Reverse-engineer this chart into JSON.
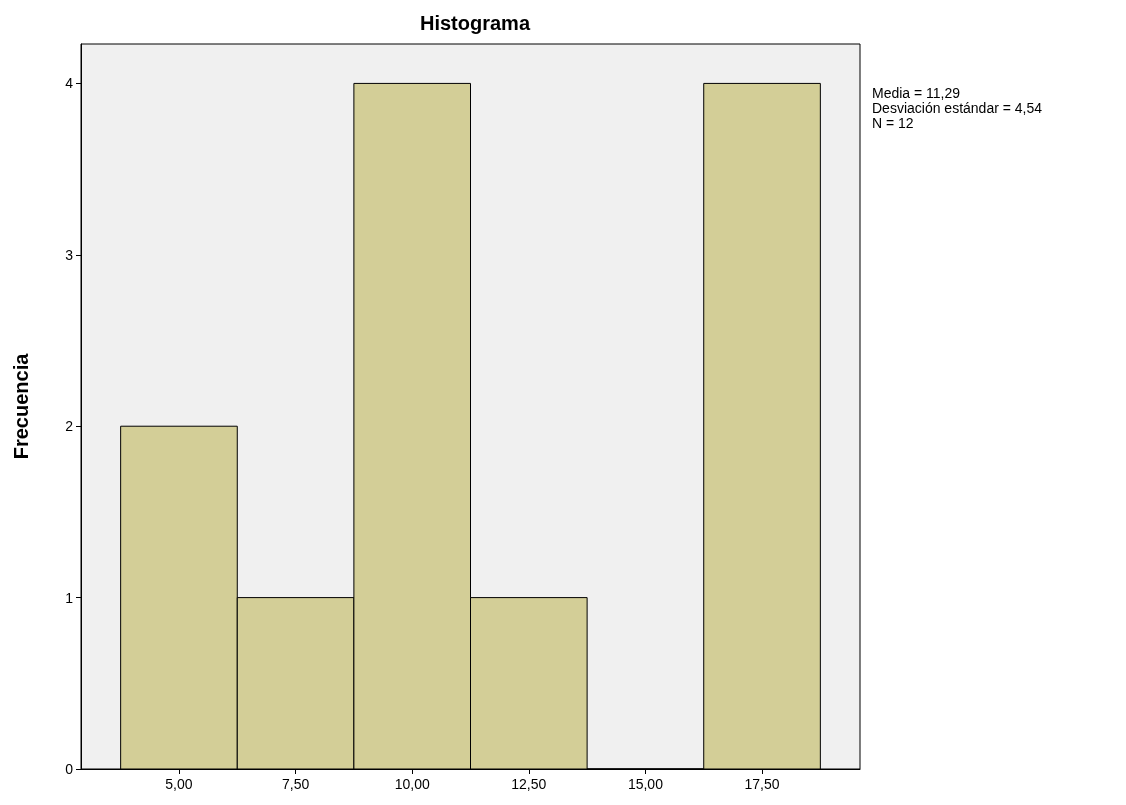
{
  "chart_data": {
    "type": "histogram",
    "title": "Histograma",
    "ylabel": "Frecuencia",
    "bins": [
      3.75,
      6.25,
      8.75,
      11.25,
      13.75,
      16.25,
      18.75
    ],
    "values": [
      2,
      1,
      4,
      1,
      0,
      4
    ],
    "color": "#d3ce97",
    "xlim": [
      2.9,
      19.6
    ],
    "xticks": [
      {
        "value": 5,
        "label": "5,00"
      },
      {
        "value": 7.5,
        "label": "7,50"
      },
      {
        "value": 10,
        "label": "10,00"
      },
      {
        "value": 12.5,
        "label": "12,50"
      },
      {
        "value": 15,
        "label": "15,00"
      },
      {
        "value": 17.5,
        "label": "17,50"
      }
    ],
    "ylim": [
      0,
      4.23
    ],
    "yticks": [
      0,
      1,
      2,
      3,
      4
    ],
    "grid": false,
    "annotations": [
      "Media = 11,29",
      "Desviación estándar = 4,54",
      "N = 12"
    ]
  }
}
